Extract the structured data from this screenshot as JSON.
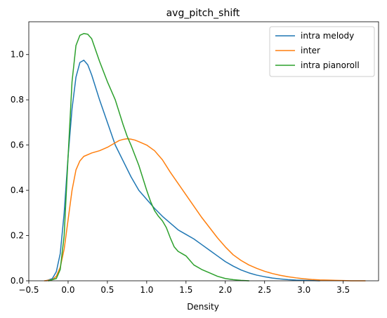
{
  "chart_data": {
    "type": "line",
    "title": "avg_pitch_shift",
    "xlabel": "Density",
    "ylabel": "",
    "xlim": [
      -0.5,
      3.95
    ],
    "ylim": [
      0,
      1.145
    ],
    "xticks": [
      -0.5,
      0.0,
      0.5,
      1.0,
      1.5,
      2.0,
      2.5,
      3.0,
      3.5
    ],
    "xtick_labels": [
      "−0.5",
      "0.0",
      "0.5",
      "1.0",
      "1.5",
      "2.0",
      "2.5",
      "3.0",
      "3.5"
    ],
    "yticks": [
      0.0,
      0.2,
      0.4,
      0.6,
      0.8,
      1.0
    ],
    "ytick_labels": [
      "0.0",
      "0.2",
      "0.4",
      "0.6",
      "0.8",
      "1.0"
    ],
    "grid": false,
    "legend_position": "top-right",
    "series": [
      {
        "name": "intra melody",
        "color": "#1f77b4",
        "x": [
          -0.28,
          -0.2,
          -0.15,
          -0.1,
          -0.05,
          0.0,
          0.05,
          0.1,
          0.15,
          0.2,
          0.25,
          0.3,
          0.4,
          0.5,
          0.6,
          0.7,
          0.8,
          0.9,
          1.0,
          1.1,
          1.2,
          1.3,
          1.4,
          1.5,
          1.6,
          1.7,
          1.8,
          1.9,
          2.0,
          2.1,
          2.2,
          2.3,
          2.4,
          2.5,
          2.6,
          2.7,
          2.8,
          2.9,
          3.0,
          3.1,
          3.2
        ],
        "y": [
          0.0,
          0.01,
          0.04,
          0.12,
          0.3,
          0.55,
          0.76,
          0.9,
          0.965,
          0.975,
          0.955,
          0.91,
          0.8,
          0.7,
          0.6,
          0.53,
          0.46,
          0.4,
          0.36,
          0.32,
          0.285,
          0.255,
          0.225,
          0.205,
          0.185,
          0.16,
          0.135,
          0.11,
          0.085,
          0.065,
          0.048,
          0.035,
          0.025,
          0.018,
          0.012,
          0.008,
          0.005,
          0.003,
          0.002,
          0.001,
          0.0
        ]
      },
      {
        "name": "inter",
        "color": "#ff7f0e",
        "x": [
          -0.3,
          -0.2,
          -0.15,
          -0.1,
          -0.05,
          0.0,
          0.05,
          0.1,
          0.15,
          0.2,
          0.3,
          0.4,
          0.5,
          0.6,
          0.65,
          0.7,
          0.75,
          0.8,
          0.85,
          0.9,
          1.0,
          1.1,
          1.2,
          1.3,
          1.4,
          1.5,
          1.6,
          1.7,
          1.8,
          1.9,
          2.0,
          2.1,
          2.2,
          2.3,
          2.4,
          2.5,
          2.6,
          2.7,
          2.8,
          2.9,
          3.0,
          3.1,
          3.2,
          3.3,
          3.4,
          3.5,
          3.6,
          3.78
        ],
        "y": [
          0.0,
          0.005,
          0.02,
          0.06,
          0.14,
          0.27,
          0.4,
          0.49,
          0.53,
          0.55,
          0.565,
          0.575,
          0.59,
          0.61,
          0.62,
          0.625,
          0.628,
          0.626,
          0.622,
          0.615,
          0.6,
          0.575,
          0.535,
          0.48,
          0.43,
          0.38,
          0.33,
          0.28,
          0.235,
          0.19,
          0.15,
          0.115,
          0.09,
          0.07,
          0.055,
          0.042,
          0.032,
          0.024,
          0.018,
          0.013,
          0.009,
          0.006,
          0.004,
          0.003,
          0.002,
          0.001,
          0.0,
          0.0
        ]
      },
      {
        "name": "intra pianoroll",
        "color": "#2ca02c",
        "x": [
          -0.25,
          -0.15,
          -0.1,
          -0.05,
          0.0,
          0.05,
          0.1,
          0.15,
          0.2,
          0.25,
          0.3,
          0.35,
          0.4,
          0.5,
          0.6,
          0.7,
          0.75,
          0.8,
          0.9,
          1.0,
          1.05,
          1.1,
          1.15,
          1.2,
          1.25,
          1.3,
          1.35,
          1.4,
          1.45,
          1.5,
          1.55,
          1.6,
          1.7,
          1.8,
          1.9,
          2.0,
          2.1,
          2.2,
          2.3
        ],
        "y": [
          0.0,
          0.01,
          0.05,
          0.2,
          0.55,
          0.88,
          1.04,
          1.085,
          1.093,
          1.09,
          1.07,
          1.02,
          0.97,
          0.88,
          0.8,
          0.69,
          0.64,
          0.6,
          0.51,
          0.4,
          0.35,
          0.31,
          0.285,
          0.265,
          0.235,
          0.19,
          0.15,
          0.13,
          0.12,
          0.11,
          0.09,
          0.07,
          0.05,
          0.035,
          0.02,
          0.01,
          0.005,
          0.002,
          0.0
        ]
      }
    ]
  }
}
